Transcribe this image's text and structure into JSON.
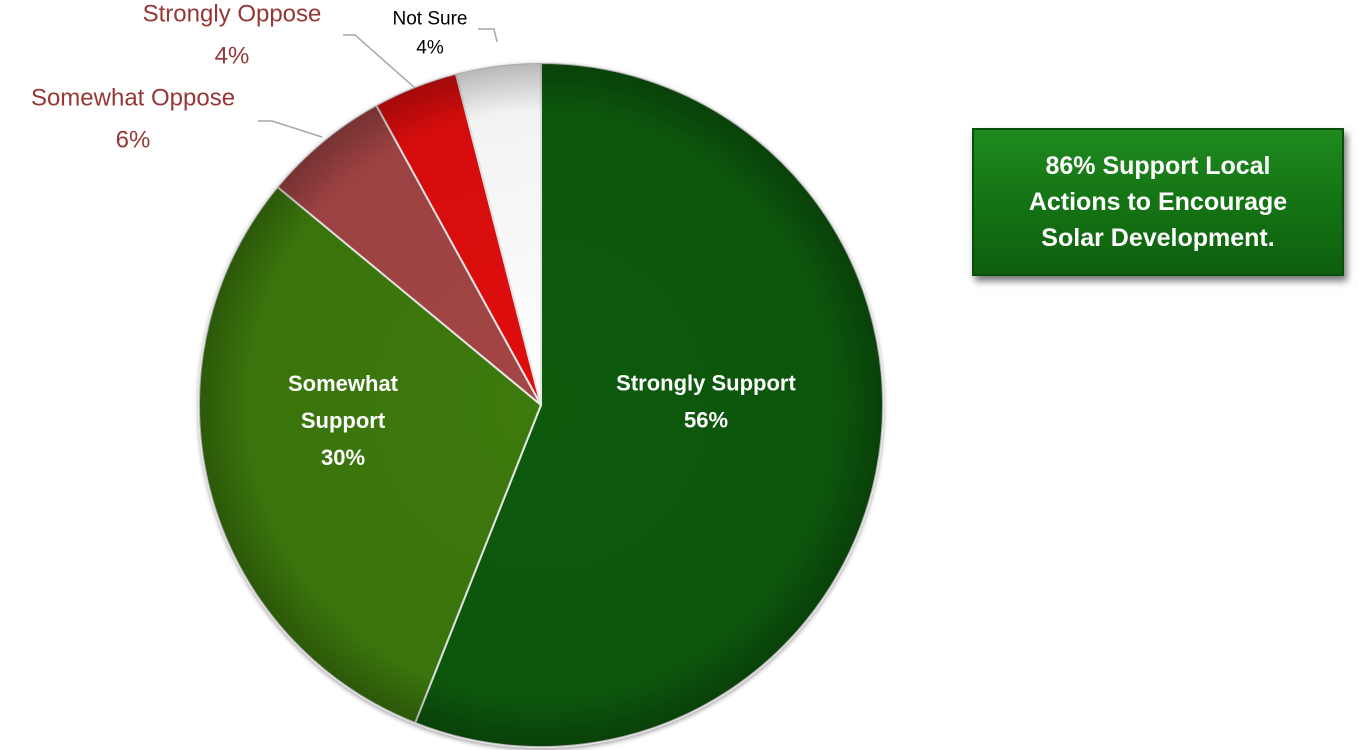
{
  "chart_data": {
    "type": "pie",
    "title": "",
    "slices": [
      {
        "label": "Strongly Support",
        "label_lines": [
          "Strongly Support"
        ],
        "value": 56,
        "value_label": "56%",
        "color": "#0a5a0a",
        "label_color": "#ffffff",
        "label_position": "inside"
      },
      {
        "label": "Somewhat Support",
        "label_lines": [
          "Somewhat",
          "Support"
        ],
        "value": 30,
        "value_label": "30%",
        "color": "#3d7a08",
        "label_color": "#ffffff",
        "label_position": "inside"
      },
      {
        "label": "Somewhat Oppose",
        "label_lines": [
          "Somewhat Oppose"
        ],
        "value": 6,
        "value_label": "6%",
        "color": "#a44444",
        "label_color": "#953735",
        "label_position": "outside"
      },
      {
        "label": "Strongly Oppose",
        "label_lines": [
          "Strongly Oppose"
        ],
        "value": 4,
        "value_label": "4%",
        "color": "#e00e0e",
        "label_color": "#953735",
        "label_position": "outside"
      },
      {
        "label": "Not Sure",
        "label_lines": [
          "Not Sure"
        ],
        "value": 4,
        "value_label": "4%",
        "color": "#ffffff",
        "label_color": "#000000",
        "label_position": "outside"
      }
    ],
    "legend": "none"
  },
  "callout": {
    "lines": [
      "86% Support Local",
      "Actions to Encourage",
      "Solar Development."
    ]
  }
}
